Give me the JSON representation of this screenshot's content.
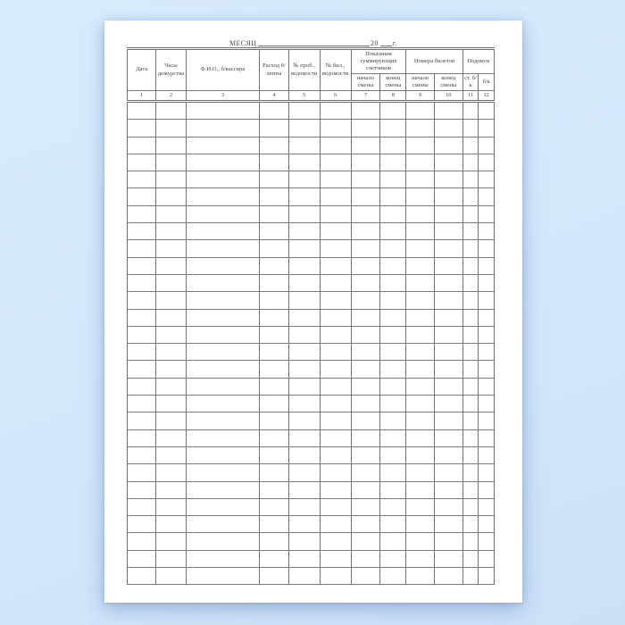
{
  "title": {
    "month_label": "МЕСЯЦ",
    "year_prefix": "20",
    "year_suffix": "г."
  },
  "table": {
    "columns": [
      {
        "label": "Дата",
        "num": "1"
      },
      {
        "label": "Часы дежурства",
        "num": "2"
      },
      {
        "label": "Ф.И.О., б/кассира",
        "num": "3"
      },
      {
        "label": "Расход б/ленты",
        "num": "4"
      },
      {
        "label": "№ проб., ведомости",
        "num": "5"
      },
      {
        "label": "№ бил., ведомости",
        "num": "6"
      }
    ],
    "groups": [
      {
        "label": "Показания суммирующих счетчиков",
        "children": [
          {
            "label": "начало смены",
            "num": "7"
          },
          {
            "label": "конец смены",
            "num": "8"
          }
        ]
      },
      {
        "label": "Номера билетов",
        "children": [
          {
            "label": "начало смены",
            "num": "9"
          },
          {
            "label": "конец смены",
            "num": "10"
          }
        ]
      },
      {
        "label": "Подписи",
        "children": [
          {
            "label": "ст. б/к",
            "num": "11"
          },
          {
            "label": "б/к",
            "num": "12"
          }
        ]
      }
    ],
    "body_rows": 28,
    "body_cols": 12,
    "grid_color": "#707070",
    "paper_color": "#ffffff",
    "background_color": "#d3e7fc"
  }
}
